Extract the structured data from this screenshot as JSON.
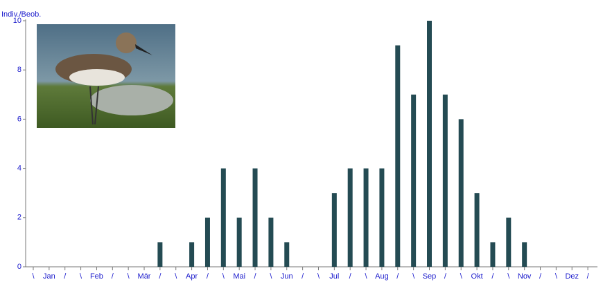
{
  "chart_data": {
    "type": "bar",
    "y_label": "Indiv./Beob.",
    "categories": [
      "\\",
      "Jan",
      "/",
      "\\",
      "Feb",
      "/",
      "\\",
      "Mär",
      "/",
      "\\",
      "Apr",
      "/",
      "\\",
      "Mai",
      "/",
      "\\",
      "Jun",
      "/",
      "\\",
      "Jul",
      "/",
      "\\",
      "Aug",
      "/",
      "\\",
      "Sep",
      "/",
      "\\",
      "Okt",
      "/",
      "\\",
      "Nov",
      "/",
      "\\",
      "Dez",
      "/"
    ],
    "values": [
      0,
      0,
      0,
      0,
      0,
      0,
      0,
      0,
      1,
      0,
      1,
      2,
      4,
      2,
      4,
      2,
      1,
      0,
      0,
      3,
      4,
      4,
      4,
      9,
      7,
      10,
      7,
      6,
      3,
      1,
      2,
      1,
      0,
      0,
      0,
      0
    ],
    "color": "#244b53",
    "ylim": [
      0,
      10
    ],
    "yticks": [
      0,
      2,
      4,
      6,
      8,
      10
    ]
  }
}
